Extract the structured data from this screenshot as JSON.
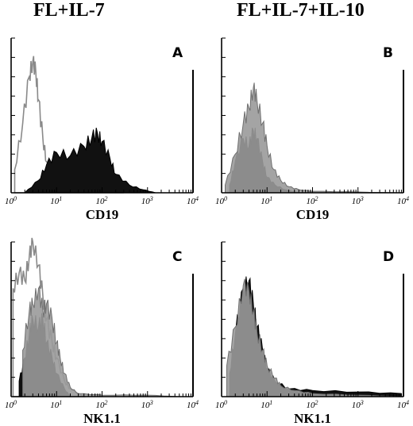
{
  "header": {
    "left_title": "FL+IL-7",
    "right_title": "FL+IL-7+IL-10"
  },
  "colors": {
    "filled_histogram": "#9a9a9a",
    "black_histogram": "#111111",
    "light_histogram": "#8a8a8a"
  },
  "chart_data": [
    {
      "type": "area",
      "panel": "A",
      "xlabel": "CD19",
      "x_scale": "log",
      "xlim": [
        1,
        10000
      ],
      "x_ticks": [
        "10^0",
        "10^1",
        "10^2",
        "10^3",
        "10^4"
      ],
      "series": [
        {
          "style": "light-outline",
          "x": [
            1.2,
            1.8,
            2.5,
            3.0,
            3.5,
            4.0,
            5.0,
            6.0,
            8.0,
            12,
            20,
            40,
            100,
            300
          ],
          "y": [
            0.15,
            0.45,
            0.75,
            0.85,
            0.78,
            0.6,
            0.35,
            0.2,
            0.1,
            0.05,
            0.03,
            0.02,
            0.01,
            0.0
          ]
        },
        {
          "style": "black-filled",
          "x": [
            2,
            4,
            6,
            10,
            20,
            40,
            60,
            80,
            100,
            150,
            200,
            400,
            800,
            1500
          ],
          "y": [
            0.0,
            0.08,
            0.18,
            0.26,
            0.24,
            0.3,
            0.36,
            0.38,
            0.33,
            0.22,
            0.12,
            0.05,
            0.02,
            0.0
          ]
        }
      ]
    },
    {
      "type": "area",
      "panel": "B",
      "xlabel": "CD19",
      "x_scale": "log",
      "xlim": [
        1,
        10000
      ],
      "x_ticks": [
        "10^0",
        "10^1",
        "10^2",
        "10^3",
        "10^4"
      ],
      "series": [
        {
          "style": "black-filled",
          "x": [
            1.5,
            2,
            3,
            4,
            5,
            6,
            8,
            10,
            15,
            25,
            50
          ],
          "y": [
            0.05,
            0.2,
            0.35,
            0.3,
            0.4,
            0.35,
            0.2,
            0.1,
            0.05,
            0.02,
            0.0
          ]
        },
        {
          "style": "grey-filled",
          "x": [
            1.2,
            2,
            3,
            4,
            5,
            6,
            8,
            10,
            14,
            20,
            30,
            50,
            100,
            1000,
            9000
          ],
          "y": [
            0.05,
            0.25,
            0.45,
            0.55,
            0.68,
            0.6,
            0.45,
            0.3,
            0.15,
            0.08,
            0.04,
            0.02,
            0.01,
            0.005,
            0.0
          ]
        }
      ]
    },
    {
      "type": "area",
      "panel": "C",
      "xlabel": "NK1.1",
      "x_scale": "log",
      "xlim": [
        1,
        10000
      ],
      "x_ticks": [
        "10^0",
        "10^1",
        "10^2",
        "10^3",
        "10^4"
      ],
      "series": [
        {
          "style": "light-outline",
          "x": [
            1.1,
            1.5,
            2,
            2.5,
            3,
            4,
            5,
            6,
            8,
            10,
            15,
            20,
            40
          ],
          "y": [
            0.7,
            0.8,
            0.75,
            0.9,
            1.0,
            0.85,
            0.65,
            0.5,
            0.35,
            0.25,
            0.1,
            0.05,
            0.0
          ]
        },
        {
          "style": "black-filled",
          "x": [
            1.5,
            2,
            2.5,
            3,
            4,
            5,
            6,
            8,
            10,
            15,
            20
          ],
          "y": [
            0.1,
            0.25,
            0.4,
            0.5,
            0.45,
            0.5,
            0.35,
            0.25,
            0.15,
            0.05,
            0.0
          ]
        },
        {
          "style": "grey-filled",
          "x": [
            1.8,
            2.5,
            3,
            4,
            5,
            6,
            8,
            10,
            12,
            15,
            20,
            30,
            100,
            1000,
            5000
          ],
          "y": [
            0.3,
            0.55,
            0.6,
            0.7,
            0.55,
            0.6,
            0.5,
            0.35,
            0.25,
            0.15,
            0.06,
            0.02,
            0.01,
            0.01,
            0.0
          ]
        }
      ]
    },
    {
      "type": "area",
      "panel": "D",
      "xlabel": "NK1.1",
      "x_scale": "log",
      "xlim": [
        1,
        10000
      ],
      "x_ticks": [
        "10^0",
        "10^1",
        "10^2",
        "10^3",
        "10^4"
      ],
      "series": [
        {
          "style": "black-filled",
          "x": [
            1.5,
            2,
            3,
            4,
            5,
            6,
            8,
            10,
            15,
            30,
            100,
            1000,
            9000
          ],
          "y": [
            0.15,
            0.4,
            0.7,
            0.75,
            0.6,
            0.45,
            0.3,
            0.18,
            0.1,
            0.05,
            0.04,
            0.03,
            0.02
          ]
        },
        {
          "style": "grey-filled",
          "x": [
            1.3,
            2,
            3,
            4,
            5,
            6,
            8,
            10,
            15,
            20,
            40,
            100,
            1000,
            9000
          ],
          "y": [
            0.2,
            0.45,
            0.72,
            0.68,
            0.55,
            0.42,
            0.3,
            0.2,
            0.12,
            0.07,
            0.04,
            0.02,
            0.01,
            0.0
          ]
        }
      ]
    }
  ]
}
